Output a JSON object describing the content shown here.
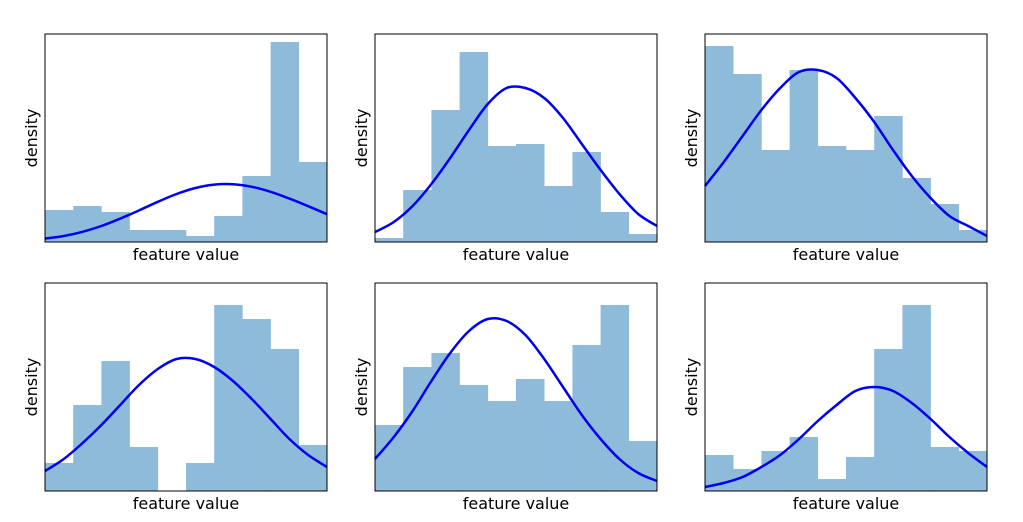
{
  "figure": {
    "hist_color": "#8fbbdb",
    "curve_color": "#0000ee",
    "frame_color": "#000000"
  },
  "chart_data": [
    {
      "type": "bar",
      "xlabel": "feature value",
      "ylabel": "density",
      "ylim": [
        0,
        1
      ],
      "bins": 10,
      "values": [
        0.16,
        0.18,
        0.15,
        0.06,
        0.06,
        0.03,
        0.13,
        0.33,
        1.0,
        0.4
      ],
      "curve": [
        0.017,
        0.03,
        0.051,
        0.08,
        0.117,
        0.158,
        0.201,
        0.24,
        0.27,
        0.287,
        0.289,
        0.276,
        0.251,
        0.217,
        0.179,
        0.139
      ]
    },
    {
      "type": "bar",
      "xlabel": "feature value",
      "ylabel": "density",
      "ylim": [
        0,
        1
      ],
      "bins": 10,
      "values": [
        0.02,
        0.26,
        0.66,
        0.95,
        0.48,
        0.49,
        0.28,
        0.45,
        0.15,
        0.04
      ],
      "curve": [
        0.05,
        0.1,
        0.18,
        0.29,
        0.42,
        0.56,
        0.69,
        0.77,
        0.77,
        0.72,
        0.62,
        0.49,
        0.36,
        0.24,
        0.14,
        0.08
      ]
    },
    {
      "type": "bar",
      "xlabel": "feature value",
      "ylabel": "density",
      "ylim": [
        0,
        1
      ],
      "bins": 10,
      "values": [
        0.98,
        0.84,
        0.46,
        0.86,
        0.48,
        0.46,
        0.63,
        0.32,
        0.19,
        0.06
      ],
      "curve": [
        0.28,
        0.4,
        0.53,
        0.66,
        0.77,
        0.85,
        0.86,
        0.82,
        0.72,
        0.6,
        0.46,
        0.33,
        0.22,
        0.13,
        0.08,
        0.03
      ]
    },
    {
      "type": "bar",
      "xlabel": "feature value",
      "ylabel": "density",
      "ylim": [
        0,
        1
      ],
      "bins": 10,
      "values": [
        0.14,
        0.43,
        0.65,
        0.22,
        0.0,
        0.14,
        0.93,
        0.86,
        0.71,
        0.23
      ],
      "curve": [
        0.1,
        0.16,
        0.24,
        0.33,
        0.43,
        0.53,
        0.61,
        0.66,
        0.66,
        0.62,
        0.55,
        0.46,
        0.36,
        0.26,
        0.18,
        0.12
      ]
    },
    {
      "type": "bar",
      "xlabel": "feature value",
      "ylabel": "density",
      "ylim": [
        0,
        1
      ],
      "bins": 10,
      "values": [
        0.33,
        0.62,
        0.69,
        0.53,
        0.45,
        0.56,
        0.45,
        0.73,
        0.93,
        0.25
      ],
      "curve": [
        0.16,
        0.27,
        0.4,
        0.55,
        0.69,
        0.8,
        0.86,
        0.85,
        0.78,
        0.66,
        0.52,
        0.38,
        0.26,
        0.16,
        0.09,
        0.05
      ]
    },
    {
      "type": "bar",
      "xlabel": "feature value",
      "ylabel": "density",
      "ylim": [
        0,
        1
      ],
      "bins": 10,
      "values": [
        0.18,
        0.11,
        0.2,
        0.27,
        0.06,
        0.17,
        0.71,
        0.93,
        0.22,
        0.2
      ],
      "curve": [
        0.02,
        0.04,
        0.07,
        0.12,
        0.18,
        0.26,
        0.35,
        0.43,
        0.5,
        0.52,
        0.5,
        0.44,
        0.36,
        0.27,
        0.19,
        0.12
      ]
    }
  ]
}
